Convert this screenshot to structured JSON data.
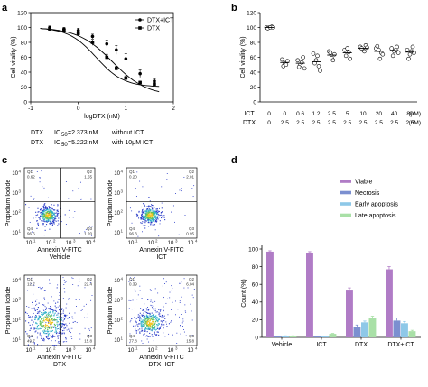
{
  "panels": {
    "a": "a",
    "b": "b",
    "c": "c",
    "d": "d"
  },
  "chart_data": [
    {
      "type": "line",
      "panel": "a",
      "xlabel": "logDTX (nM)",
      "ylabel": "Cell vitality (%)",
      "xlim": [
        -1,
        2
      ],
      "ylim": [
        0,
        120
      ],
      "xticks": [
        "-1",
        "0",
        "1",
        "2"
      ],
      "yticks": [
        "0",
        "20",
        "40",
        "60",
        "80",
        "100",
        "120"
      ],
      "legend_position": "top-right",
      "series": [
        {
          "name": "DTX+ICT",
          "marker": "circle",
          "x": [
            -0.6,
            -0.3,
            0.0,
            0.3,
            0.6,
            0.8,
            1.0,
            1.3,
            1.6
          ],
          "y": [
            100,
            98,
            96,
            88,
            78,
            70,
            58,
            38,
            28
          ],
          "err": [
            2,
            2,
            3,
            3,
            5,
            6,
            7,
            5,
            3
          ],
          "fit_ic50": 0.718,
          "fit_top": 100,
          "fit_bottom": 8,
          "fit_hill": 1.2
        },
        {
          "name": "DTX",
          "marker": "square",
          "x": [
            -0.6,
            -0.3,
            0.0,
            0.3,
            0.6,
            0.8,
            1.0,
            1.3,
            1.6
          ],
          "y": [
            98,
            96,
            92,
            80,
            60,
            45,
            32,
            26,
            24
          ],
          "err": [
            2,
            2,
            3,
            4,
            4,
            3,
            3,
            2,
            2
          ],
          "fit_ic50": 0.375,
          "fit_top": 100,
          "fit_bottom": 20,
          "fit_hill": 1.5
        }
      ],
      "annotations": [
        {
          "drug": "DTX",
          "ic50_label": "IC",
          "ic50_sub": "50",
          "value": "=2.373 nM",
          "note": "without ICT"
        },
        {
          "drug": "DTX",
          "ic50_label": "IC",
          "ic50_sub": "50",
          "value": "=5.222 nM",
          "note": "with 10μM ICT"
        }
      ]
    },
    {
      "type": "scatter",
      "panel": "b",
      "ylabel": "Cell vitality (%)",
      "ylim": [
        0,
        120
      ],
      "yticks": [
        "0",
        "20",
        "40",
        "60",
        "80",
        "100",
        "120"
      ],
      "row_labels": [
        "ICT",
        "DTX"
      ],
      "row_units": [
        "(μM)",
        "(nM)"
      ],
      "ict": [
        "0",
        "0",
        "0.6",
        "1.2",
        "2.5",
        "5",
        "10",
        "20",
        "40",
        "80"
      ],
      "dtx": [
        "0",
        "2.5",
        "2.5",
        "2.5",
        "2.5",
        "2.5",
        "2.5",
        "2.5",
        "2.5",
        "2.5"
      ],
      "points": [
        [
          100,
          100,
          101,
          99,
          100,
          100
        ],
        [
          57,
          52,
          55,
          48,
          50
        ],
        [
          56,
          50,
          60,
          47,
          53,
          45
        ],
        [
          65,
          56,
          48,
          52,
          62,
          42
        ],
        [
          68,
          59,
          64,
          66,
          56
        ],
        [
          70,
          72,
          58,
          62,
          67
        ],
        [
          74,
          70,
          76,
          72,
          68,
          73
        ],
        [
          72,
          70,
          66,
          75,
          58,
          64
        ],
        [
          72,
          68,
          74,
          62,
          70,
          66
        ],
        [
          70,
          64,
          74,
          58,
          68,
          66
        ]
      ],
      "means": [
        100,
        53,
        52,
        54,
        63,
        66,
        72,
        68,
        69,
        67
      ]
    },
    {
      "type": "scatter",
      "panel": "c",
      "xlabel": "Annexin V-FITC",
      "ylabel": "Propidium Iodide",
      "tick_labels": [
        "10",
        "10",
        "10",
        "10"
      ],
      "tick_exps": [
        "1",
        "2",
        "3",
        "4"
      ],
      "plots": [
        {
          "name": "Vehicle",
          "quadrants": {
            "Q1": "0.62",
            "Q2": "1.55",
            "Q3": "1.20",
            "Q4": "96.6"
          }
        },
        {
          "name": "ICT",
          "quadrants": {
            "Q1": "0.20",
            "Q2": "2.01",
            "Q3": "0.95",
            "Q4": "96.3"
          }
        },
        {
          "name": "DTX",
          "quadrants": {
            "Q1": "12.7",
            "Q2": "22.4",
            "Q3": "15.8",
            "Q4": "49.7"
          }
        },
        {
          "name": "DTX+ICT",
          "quadrants": {
            "Q1": "0.39",
            "Q2": "6.04",
            "Q3": "15.8",
            "Q4": "77.8"
          }
        }
      ]
    },
    {
      "type": "bar",
      "panel": "d",
      "ylabel": "Count (%)",
      "ylim": [
        0,
        100
      ],
      "yticks": [
        "0",
        "20",
        "40",
        "60",
        "80",
        "100"
      ],
      "categories": [
        "Vehicle",
        "ICT",
        "DTX",
        "DTX+ICT"
      ],
      "legend_position": "top-right",
      "series": [
        {
          "name": "Viable",
          "color": "#b07cc6",
          "values": [
            97,
            95,
            53,
            77
          ],
          "err": [
            1,
            2,
            3,
            3
          ]
        },
        {
          "name": "Necrosis",
          "color": "#7b8fd0",
          "values": [
            1,
            1,
            12,
            19
          ],
          "err": [
            0.3,
            0.3,
            2,
            3
          ]
        },
        {
          "name": "Early apoptosis",
          "color": "#8ec8e8",
          "values": [
            1.5,
            1,
            17,
            16
          ],
          "err": [
            0.3,
            0.3,
            1.5,
            2
          ]
        },
        {
          "name": "Late apoptosis",
          "color": "#a9e0a7",
          "values": [
            1.5,
            4,
            22,
            7
          ],
          "err": [
            0.3,
            0.5,
            2,
            1
          ]
        }
      ]
    }
  ]
}
